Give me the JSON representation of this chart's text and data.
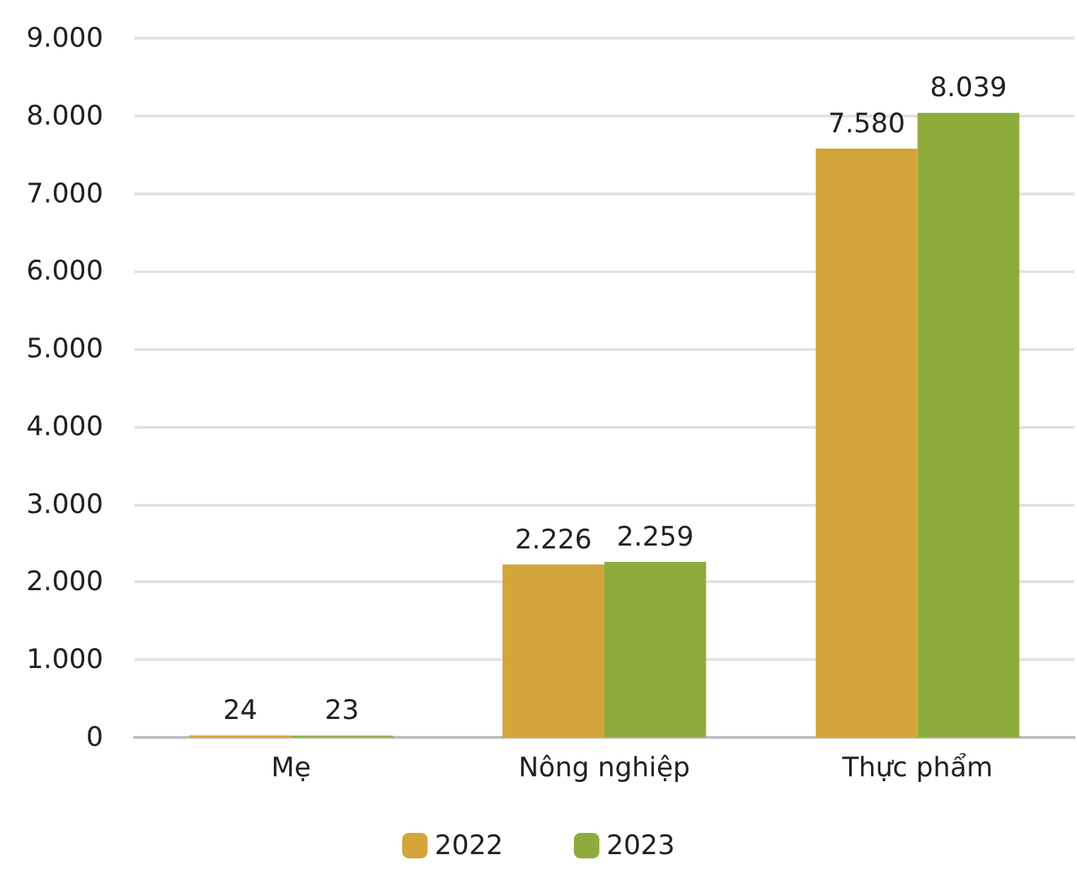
{
  "chart_data": {
    "type": "bar",
    "categories": [
      "Mẹ",
      "Nông nghiệp",
      "Thực phẩm"
    ],
    "series": [
      {
        "name": "2022",
        "color": "#d3a53a",
        "values": [
          24,
          2226,
          7580
        ],
        "value_labels": [
          "24",
          "2.226",
          "7.580"
        ]
      },
      {
        "name": "2023",
        "color": "#8eac3c",
        "values": [
          23,
          2259,
          8039
        ],
        "value_labels": [
          "23",
          "2.259",
          "8.039"
        ]
      }
    ],
    "ylim": [
      0,
      9000
    ],
    "yticks": [
      {
        "value": 0,
        "label": "0"
      },
      {
        "value": 1000,
        "label": "1.000"
      },
      {
        "value": 2000,
        "label": "2.000"
      },
      {
        "value": 3000,
        "label": "3.000"
      },
      {
        "value": 4000,
        "label": "4.000"
      },
      {
        "value": 5000,
        "label": "5.000"
      },
      {
        "value": 6000,
        "label": "6.000"
      },
      {
        "value": 7000,
        "label": "7.000"
      },
      {
        "value": 8000,
        "label": "8.000"
      },
      {
        "value": 9000,
        "label": "9.000"
      }
    ],
    "grid": "y",
    "legend": "bottom"
  }
}
